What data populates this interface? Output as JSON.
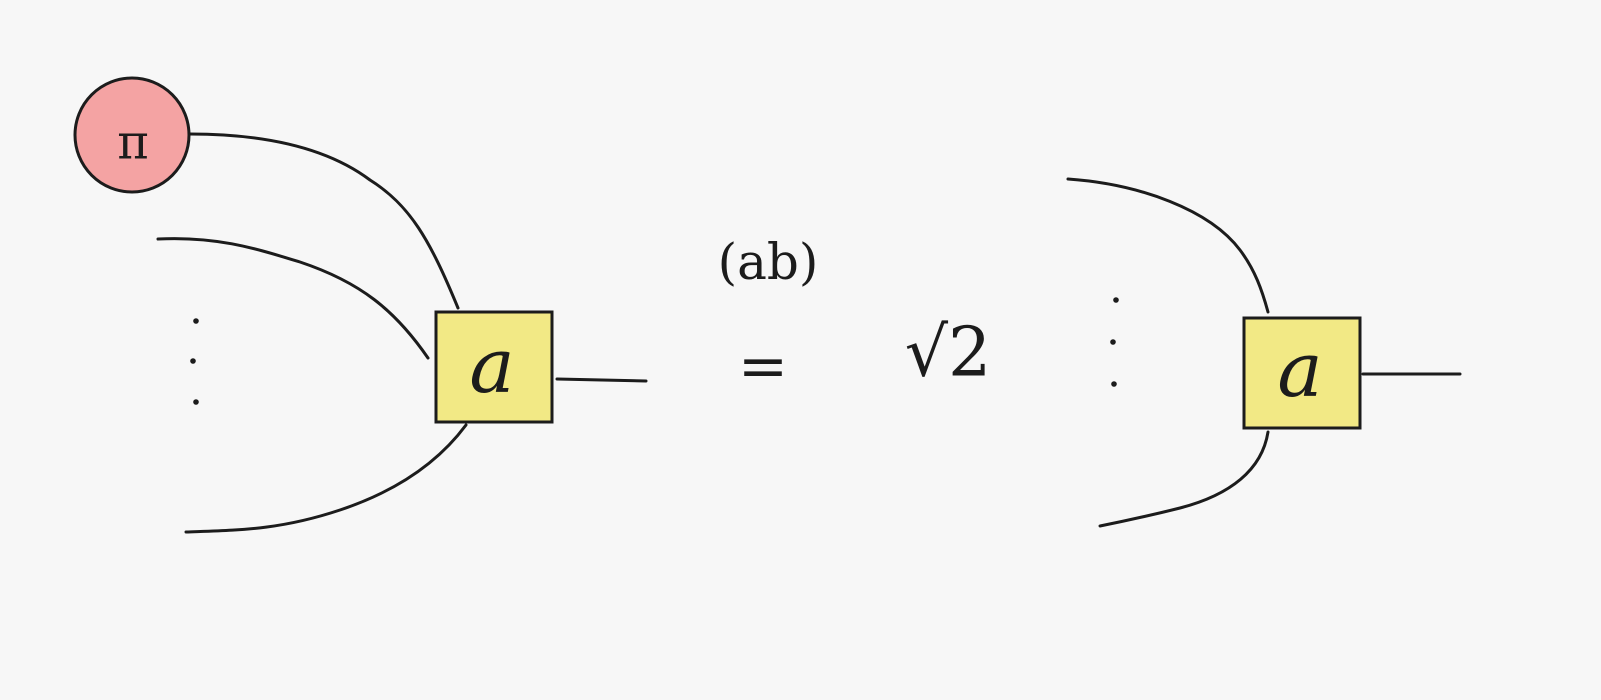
{
  "colors": {
    "background": "#f7f7f7",
    "ink": "#1c1c1c",
    "tensor_fill": "#f2e985",
    "pi_node_fill": "#f4a3a3"
  },
  "lhs": {
    "pi_label": "π",
    "tensor_label": "a"
  },
  "equation": {
    "superscript": "(ab)",
    "equals": "=",
    "coefficient": "√2"
  },
  "rhs": {
    "tensor_label": "a"
  }
}
